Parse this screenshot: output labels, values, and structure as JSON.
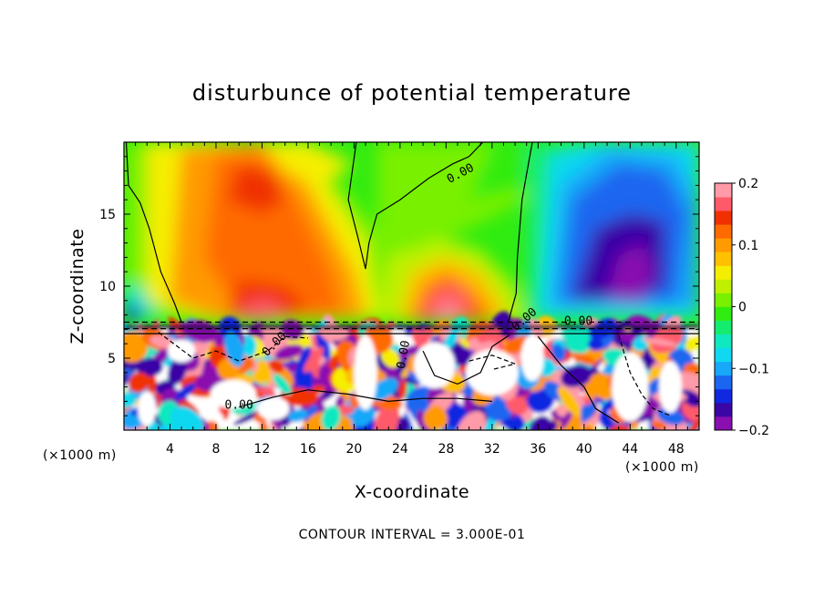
{
  "chart_data": {
    "type": "heatmap",
    "title": "disturbunce of potential temperature",
    "xlabel": "X-coordinate",
    "ylabel": "Z-coordinate",
    "x_unit": "(×1000 m)",
    "y_unit": "(×1000 m)",
    "xlim": [
      0,
      50
    ],
    "ylim": [
      0,
      20
    ],
    "x_ticks": [
      4,
      8,
      12,
      16,
      20,
      24,
      28,
      32,
      36,
      40,
      44,
      48
    ],
    "y_ticks": [
      5,
      10,
      15
    ],
    "colorbar": {
      "range": [
        -0.2,
        0.2
      ],
      "tick_values": [
        0.2,
        0.1,
        0,
        -0.1,
        -0.2
      ],
      "tick_labels": [
        "0.2",
        "0.1",
        "0",
        "−0.1",
        "−0.2"
      ],
      "colors": [
        "#8a0fb0",
        "#3a06a6",
        "#1028e0",
        "#1a66f0",
        "#18a8f8",
        "#10d8f0",
        "#10e8c0",
        "#14ec70",
        "#30ec10",
        "#78f000",
        "#c0f000",
        "#f6ee00",
        "#ffc000",
        "#ff9a00",
        "#ff6a00",
        "#f03000",
        "#ff5a6a",
        "#ff9aa8"
      ]
    },
    "contour_labels": [
      "0.00",
      "0.00",
      "0.00",
      "0.00",
      "0.00",
      "0.00"
    ],
    "contour_interval_text": "CONTOUR INTERVAL = 3.000E-01",
    "field_description": [
      {
        "region": "upper layer x 8-22, z 8-19",
        "value": 0.12
      },
      {
        "region": "upper layer x 25-32, z 8-11",
        "value": 0.15
      },
      {
        "region": "upper layer x 36-48, z 8-19",
        "value": -0.15
      },
      {
        "region": "upper layer x 22-36, z 12-19",
        "value": 0.0
      },
      {
        "region": "lower layer z 0-7",
        "value": "oscillating -0.2..0.2"
      }
    ]
  }
}
